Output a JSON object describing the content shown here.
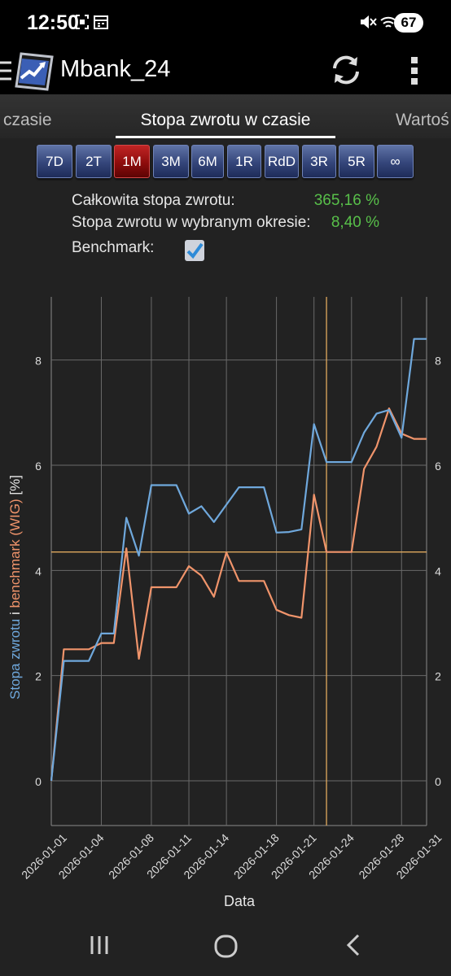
{
  "status_bar": {
    "time": "12:50",
    "battery": "67",
    "left_icons": [
      "screenshot-icon",
      "calendar-icon"
    ],
    "right_icons": [
      "mute-icon",
      "wifi-icon",
      "signal-icon"
    ]
  },
  "app_bar": {
    "title": "Mbank_24",
    "icons": [
      "menu-icon",
      "app-logo-icon",
      "refresh-icon",
      "more-vert-icon"
    ]
  },
  "tabs": {
    "left": "czasie",
    "active": "Stopa zwrotu w czasie",
    "right": "Wartoś"
  },
  "range_buttons": [
    "7D",
    "2T",
    "1M",
    "3M",
    "6M",
    "1R",
    "RdD",
    "3R",
    "5R",
    "∞"
  ],
  "range_selected": "1M",
  "summary": {
    "total_label": "Całkowita stopa zwrotu:",
    "total_value": "365,16 %",
    "period_label": "Stopa zwrotu w wybranym okresie:",
    "period_value": "8,40 %",
    "benchmark_label": "Benchmark:",
    "benchmark_checked": true
  },
  "chart_data": {
    "type": "line",
    "xlabel": "Data",
    "ylabel_parts": [
      "Stopa zwrotu",
      " i ",
      "benchmark (WIG)",
      " [%]"
    ],
    "ylim": [
      -0.85,
      9.2
    ],
    "yticks": [
      "0",
      "2",
      "4",
      "6",
      "8"
    ],
    "xticks": [
      "2026-01-01",
      "2026-01-04",
      "2026-01-08",
      "2026-01-11",
      "2026-01-14",
      "2026-01-18",
      "2026-01-21",
      "2026-01-24",
      "2026-01-28",
      "2026-01-31"
    ],
    "crosshair": {
      "date": "2026-01-22",
      "value": 4.35
    },
    "series": [
      {
        "name": "Stopa zwrotu",
        "color": "#6fa8dc",
        "points": [
          [
            "2025-12-31",
            0
          ],
          [
            "2026-01-01",
            2.28
          ],
          [
            "2026-01-02",
            2.28
          ],
          [
            "2026-01-03",
            2.28
          ],
          [
            "2026-01-04",
            2.8
          ],
          [
            "2026-01-05",
            2.8
          ],
          [
            "2026-01-06",
            5.0
          ],
          [
            "2026-01-07",
            4.28
          ],
          [
            "2026-01-08",
            5.62
          ],
          [
            "2026-01-09",
            5.62
          ],
          [
            "2026-01-10",
            5.62
          ],
          [
            "2026-01-11",
            5.08
          ],
          [
            "2026-01-12",
            5.22
          ],
          [
            "2026-01-13",
            4.92
          ],
          [
            "2026-01-14",
            5.25
          ],
          [
            "2026-01-15",
            5.58
          ],
          [
            "2026-01-16",
            5.58
          ],
          [
            "2026-01-17",
            5.58
          ],
          [
            "2026-01-18",
            4.72
          ],
          [
            "2026-01-19",
            4.73
          ],
          [
            "2026-01-20",
            4.78
          ],
          [
            "2026-01-21",
            6.78
          ],
          [
            "2026-01-22",
            6.06
          ],
          [
            "2026-01-23",
            6.06
          ],
          [
            "2026-01-24",
            6.06
          ],
          [
            "2026-01-25",
            6.62
          ],
          [
            "2026-01-26",
            6.98
          ],
          [
            "2026-01-27",
            7.05
          ],
          [
            "2026-01-28",
            6.52
          ],
          [
            "2026-01-29",
            8.4
          ],
          [
            "2026-01-30",
            8.4
          ]
        ]
      },
      {
        "name": "benchmark (WIG)",
        "color": "#f0946b",
        "points": [
          [
            "2025-12-31",
            0
          ],
          [
            "2026-01-01",
            2.5
          ],
          [
            "2026-01-02",
            2.5
          ],
          [
            "2026-01-03",
            2.5
          ],
          [
            "2026-01-04",
            2.62
          ],
          [
            "2026-01-05",
            2.62
          ],
          [
            "2026-01-06",
            4.42
          ],
          [
            "2026-01-07",
            2.32
          ],
          [
            "2026-01-08",
            3.68
          ],
          [
            "2026-01-09",
            3.68
          ],
          [
            "2026-01-10",
            3.68
          ],
          [
            "2026-01-11",
            4.08
          ],
          [
            "2026-01-12",
            3.9
          ],
          [
            "2026-01-13",
            3.5
          ],
          [
            "2026-01-14",
            4.34
          ],
          [
            "2026-01-15",
            3.8
          ],
          [
            "2026-01-16",
            3.8
          ],
          [
            "2026-01-17",
            3.8
          ],
          [
            "2026-01-18",
            3.25
          ],
          [
            "2026-01-19",
            3.15
          ],
          [
            "2026-01-20",
            3.1
          ],
          [
            "2026-01-21",
            5.44
          ],
          [
            "2026-01-22",
            4.35
          ],
          [
            "2026-01-23",
            4.35
          ],
          [
            "2026-01-24",
            4.35
          ],
          [
            "2026-01-25",
            5.93
          ],
          [
            "2026-01-26",
            6.35
          ],
          [
            "2026-01-27",
            7.08
          ],
          [
            "2026-01-28",
            6.6
          ],
          [
            "2026-01-29",
            6.5
          ],
          [
            "2026-01-30",
            6.5
          ]
        ]
      }
    ]
  },
  "nav_bar": {
    "buttons": [
      "recents-button",
      "home-button",
      "back-button"
    ]
  }
}
